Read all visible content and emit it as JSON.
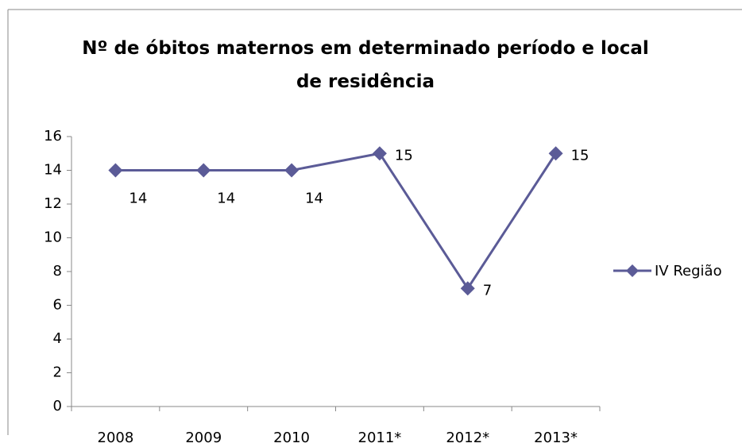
{
  "chart_data": {
    "type": "line",
    "title": "Nº de óbitos maternos em determinado período e local de residência",
    "categories": [
      "2008",
      "2009",
      "2010",
      "2011*",
      "2012*",
      "2013*"
    ],
    "series": [
      {
        "name": "IV Região",
        "color": "#5b5b97",
        "values": [
          14,
          14,
          14,
          15,
          7,
          15
        ]
      }
    ],
    "ylim": [
      0,
      16
    ],
    "yticks": [
      0,
      2,
      4,
      6,
      8,
      10,
      12,
      14,
      16
    ],
    "grid": false,
    "legend": "right"
  }
}
